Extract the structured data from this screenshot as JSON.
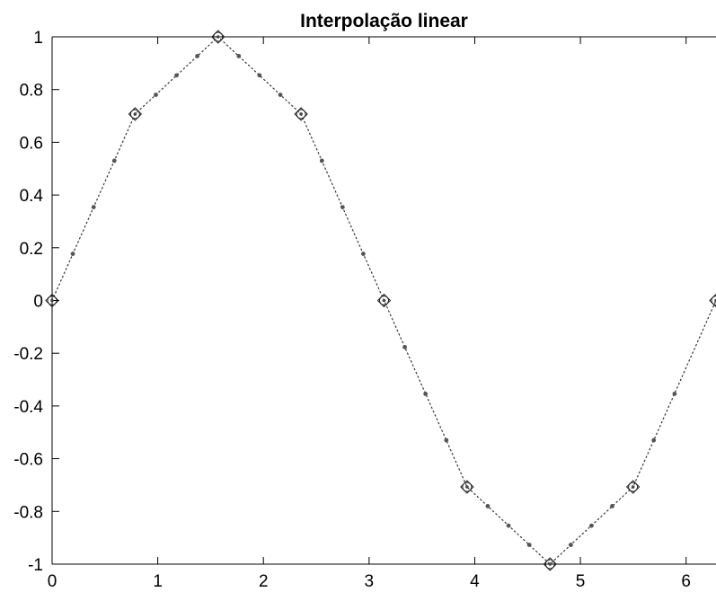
{
  "chart_data": {
    "type": "line",
    "title": "Interpolação linear",
    "xlabel": "",
    "ylabel": "",
    "xlim": [
      0,
      6.2832
    ],
    "ylim": [
      -1,
      1
    ],
    "x_ticks": [
      0,
      1,
      2,
      3,
      4,
      5,
      6
    ],
    "x_tick_labels": [
      "0",
      "1",
      "2",
      "3",
      "4",
      "5",
      "6"
    ],
    "y_ticks": [
      1,
      0.8,
      0.6,
      0.4,
      0.2,
      0,
      -0.2,
      -0.4,
      -0.6,
      -0.8,
      -1
    ],
    "y_tick_labels": [
      "1",
      "0.8",
      "0.6",
      "0.4",
      "0.2",
      "0",
      "-0.2",
      "-0.4",
      "-0.6",
      "-0.8",
      "-1"
    ],
    "grid": false,
    "colors": {
      "line": "#333333",
      "markers": "#555555",
      "axes": "#000000"
    },
    "series": [
      {
        "marker": "diamond-with-circle",
        "line_style": "dotted",
        "x": [
          0,
          0.7854,
          1.5708,
          2.3562,
          3.1416,
          3.927,
          4.7124,
          5.4978,
          6.2832
        ],
        "y": [
          0,
          0.7071,
          1,
          0.7071,
          0,
          -0.7071,
          -1,
          -0.7071,
          0
        ]
      },
      {
        "marker": "dot",
        "x": [
          0.196,
          0.393,
          0.589,
          0.982,
          1.178,
          1.374,
          1.767,
          1.963,
          2.16,
          2.553,
          2.749,
          2.945,
          3.338,
          3.534,
          3.731,
          4.123,
          4.32,
          4.516,
          4.909,
          5.105,
          5.301,
          5.694,
          5.891
        ],
        "y": [
          0.177,
          0.354,
          0.53,
          0.78,
          0.854,
          0.927,
          0.927,
          0.854,
          0.78,
          0.53,
          0.354,
          0.177,
          -0.177,
          -0.354,
          -0.53,
          -0.78,
          -0.854,
          -0.927,
          -0.927,
          -0.854,
          -0.78,
          -0.53,
          -0.354
        ]
      }
    ]
  }
}
